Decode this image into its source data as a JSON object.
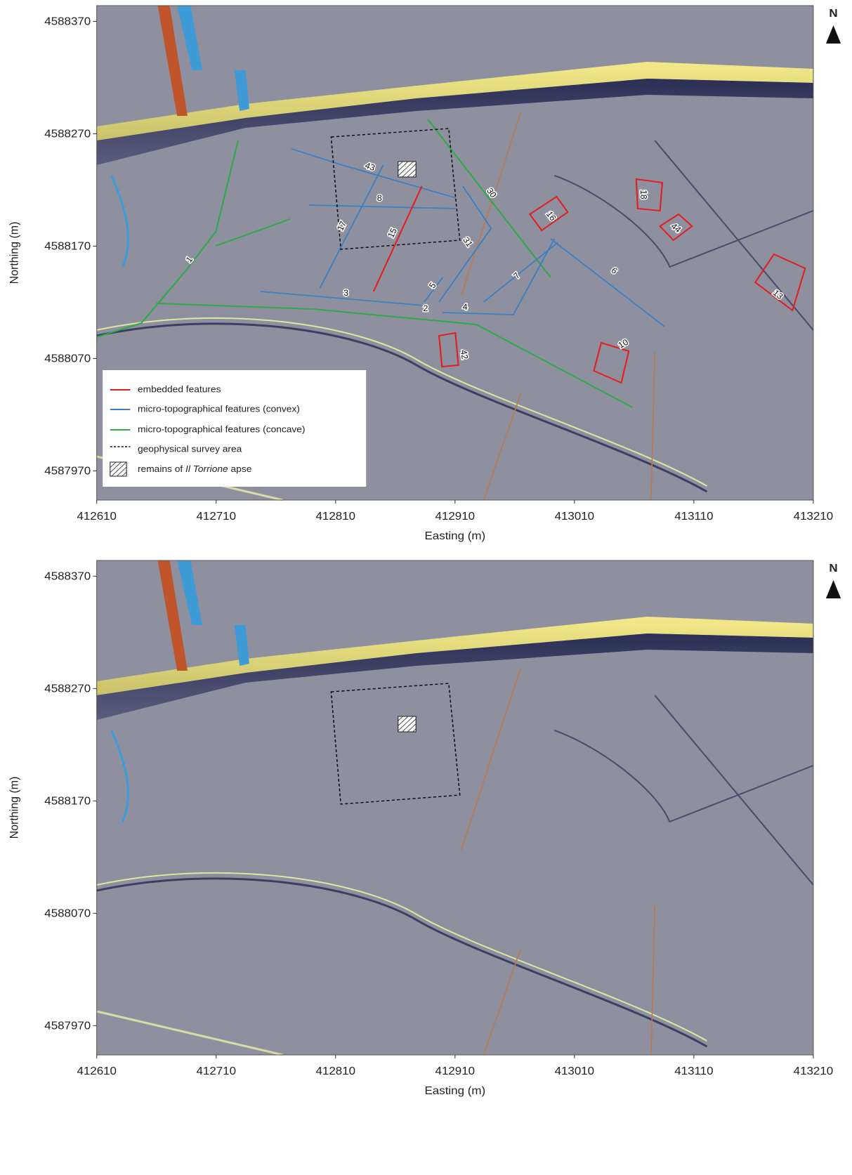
{
  "panels": [
    {
      "x_label": "Easting (m)",
      "y_label": "Northing (m)",
      "north": "N",
      "xlim": [
        412610,
        413210
      ],
      "ylim": [
        4587944,
        4588384
      ],
      "xticks": [
        412610,
        412710,
        412810,
        412910,
        413010,
        413110,
        413210
      ],
      "yticks": [
        4587970,
        4588070,
        4588170,
        4588270,
        4588370
      ]
    },
    {
      "x_label": "Easting (m)",
      "y_label": "Northing (m)",
      "north": "N",
      "xlim": [
        412610,
        413210
      ],
      "ylim": [
        4587944,
        4588384
      ],
      "xticks": [
        412610,
        412710,
        412810,
        412910,
        413010,
        413110,
        413210
      ],
      "yticks": [
        4587970,
        4588070,
        4588170,
        4588270,
        4588370
      ]
    }
  ],
  "legend": {
    "items": [
      {
        "label": "embedded features"
      },
      {
        "label": "micro-topographical features (convex)"
      },
      {
        "label": "micro-topographical features (concave)"
      },
      {
        "label": "geophysical survey area"
      },
      {
        "label_before": "remains of",
        "label_italic": "Il Torrione",
        "label_after": "apse"
      }
    ]
  },
  "features": [
    {
      "label": "1"
    },
    {
      "label": "43"
    },
    {
      "label": "8"
    },
    {
      "label": "17"
    },
    {
      "label": "15"
    },
    {
      "label": "31"
    },
    {
      "label": "30"
    },
    {
      "label": "16"
    },
    {
      "label": "18"
    },
    {
      "label": "44"
    },
    {
      "label": "13"
    },
    {
      "label": "6"
    },
    {
      "label": "7"
    },
    {
      "label": "5"
    },
    {
      "label": "3"
    },
    {
      "label": "2"
    },
    {
      "label": "4"
    },
    {
      "label": "42"
    },
    {
      "label": "10"
    }
  ]
}
